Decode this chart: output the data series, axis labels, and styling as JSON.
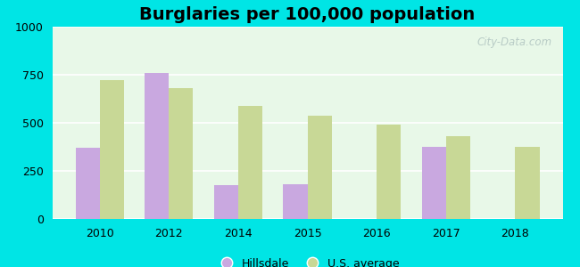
{
  "title": "Burglaries per 100,000 population",
  "years": [
    2010,
    2012,
    2014,
    2015,
    2016,
    2017,
    2018
  ],
  "hillsdale": [
    370,
    760,
    175,
    180,
    0,
    375,
    0
  ],
  "us_average": [
    720,
    680,
    590,
    535,
    490,
    430,
    375
  ],
  "hillsdale_color": "#c9a8e0",
  "us_avg_color": "#c8d896",
  "background_color": "#e8f8e8",
  "outer_background": "#00e5e5",
  "ylim": [
    0,
    1000
  ],
  "yticks": [
    0,
    250,
    500,
    750,
    1000
  ],
  "bar_width": 0.35,
  "title_fontsize": 14,
  "tick_fontsize": 9,
  "legend_fontsize": 9,
  "watermark_text": "City-Data.com"
}
